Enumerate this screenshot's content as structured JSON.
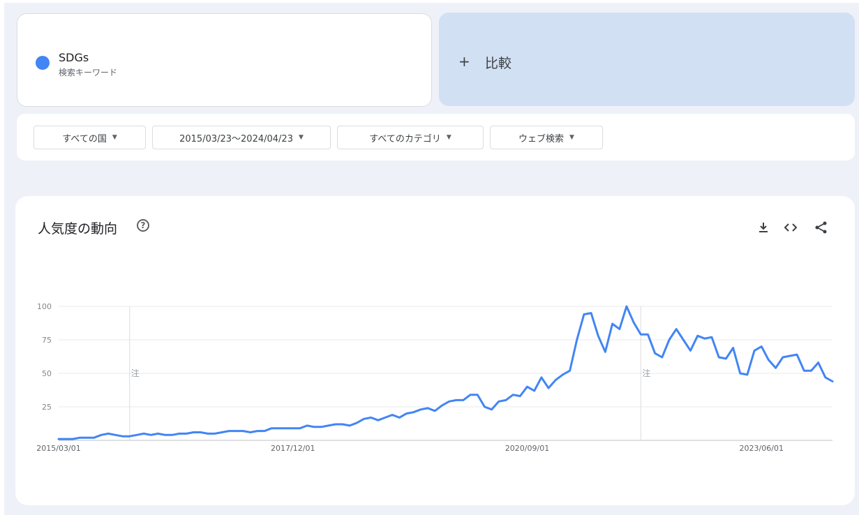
{
  "search": {
    "term": "SDGs",
    "term_type": "検索キーワード",
    "term_color": "#4285f4",
    "compare_plus": "+",
    "compare_label": "比較"
  },
  "filters": {
    "region": "すべての国",
    "date_range": "2015/03/23～2024/04/23",
    "category": "すべてのカテゴリ",
    "search_type": "ウェブ検索",
    "caret": "▼"
  },
  "chart": {
    "title": "人気度の動向",
    "help": "?",
    "icons": [
      "download-icon",
      "embed-icon",
      "share-icon"
    ]
  },
  "chart_data": {
    "type": "line",
    "title": "人気度の動向",
    "xlabel": "",
    "ylabel": "",
    "ylim": [
      0,
      100
    ],
    "yticks": [
      25,
      50,
      75,
      100
    ],
    "xtick_labels": [
      "2015/03/01",
      "2017/12/01",
      "2020/09/01",
      "2023/06/01"
    ],
    "xtick_index": [
      0,
      33,
      66,
      99
    ],
    "grid": true,
    "legend": "none",
    "annotation_marker": "注",
    "annotation_index": [
      10,
      82
    ],
    "series": [
      {
        "color": "#4285f4",
        "values": [
          1,
          1,
          1,
          2,
          2,
          2,
          4,
          5,
          4,
          3,
          3,
          4,
          5,
          4,
          5,
          4,
          4,
          5,
          5,
          6,
          6,
          5,
          5,
          6,
          7,
          7,
          7,
          6,
          7,
          7,
          9,
          9,
          9,
          9,
          9,
          11,
          10,
          10,
          11,
          12,
          12,
          11,
          13,
          16,
          17,
          15,
          17,
          19,
          17,
          20,
          21,
          23,
          24,
          22,
          26,
          29,
          30,
          30,
          34,
          34,
          25,
          23,
          29,
          30,
          34,
          33,
          40,
          37,
          47,
          39,
          45,
          49,
          52,
          75,
          94,
          95,
          78,
          66,
          87,
          83,
          100,
          88,
          79,
          79,
          65,
          62,
          75,
          83,
          75,
          67,
          78,
          76,
          77,
          62,
          61,
          69,
          50,
          49,
          67,
          70,
          60,
          54,
          62,
          63,
          64,
          52,
          52,
          58,
          47,
          44
        ]
      }
    ]
  }
}
